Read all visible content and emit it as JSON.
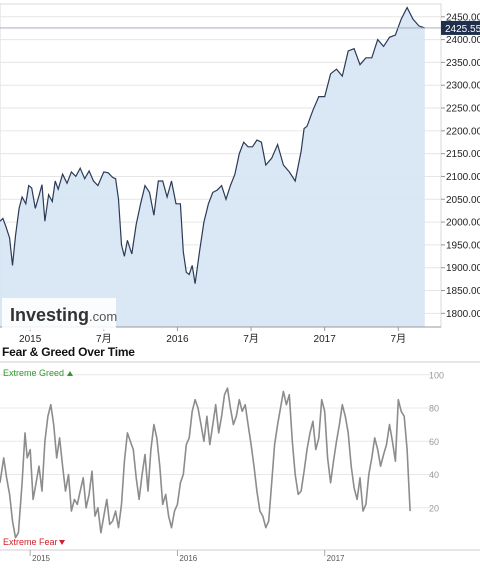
{
  "chart_data": [
    {
      "type": "area",
      "title": "",
      "logo": {
        "brand": "Investing",
        "suffix": ".com"
      },
      "x_ticks": [
        {
          "t": 2015.0,
          "label": "2015"
        },
        {
          "t": 2015.5,
          "label": "7月"
        },
        {
          "t": 2016.0,
          "label": "2016"
        },
        {
          "t": 2016.5,
          "label": "7月"
        },
        {
          "t": 2017.0,
          "label": "2017"
        },
        {
          "t": 2017.5,
          "label": "7月"
        }
      ],
      "y_ticks": [
        "1800.00",
        "1850.00",
        "1900.00",
        "1950.00",
        "2000.00",
        "2050.00",
        "2100.00",
        "2150.00",
        "2200.00",
        "2250.00",
        "2300.00",
        "2350.00",
        "2400.00",
        "2450.00"
      ],
      "ylim": [
        1770,
        2478
      ],
      "xlim": [
        2014.795,
        2017.79
      ],
      "current_value": "2425.55",
      "current_value_raw": 2425.55,
      "colors": {
        "line": "#2b3a55",
        "fill": "#d6e6f5",
        "badge": "#1f2f4d",
        "grid": "#e6e6e6"
      },
      "series": [
        {
          "x": [
            2014.795,
            2014.815,
            2014.835,
            2014.86,
            2014.88,
            2014.9,
            2014.925,
            2014.945,
            2014.97,
            2014.99,
            2015.01,
            2015.035,
            2015.06,
            2015.08,
            2015.1,
            2015.125,
            2015.15,
            2015.17,
            2015.19,
            2015.22,
            2015.25,
            2015.28,
            2015.31,
            2015.34,
            2015.37,
            2015.4,
            2015.43,
            2015.46,
            2015.5,
            2015.53,
            2015.56,
            2015.58,
            2015.6,
            2015.62,
            2015.64,
            2015.66,
            2015.69,
            2015.72,
            2015.75,
            2015.78,
            2015.81,
            2015.84,
            2015.87,
            2015.9,
            2015.93,
            2015.96,
            2015.99,
            2016.02,
            2016.04,
            2016.06,
            2016.08,
            2016.1,
            2016.12,
            2016.15,
            2016.18,
            2016.21,
            2016.24,
            2016.27,
            2016.3,
            2016.33,
            2016.36,
            2016.39,
            2016.42,
            2016.45,
            2016.48,
            2016.51,
            2016.54,
            2016.57,
            2016.6,
            2016.64,
            2016.68,
            2016.72,
            2016.76,
            2016.8,
            2016.84,
            2016.86,
            2016.88,
            2016.92,
            2016.96,
            2017.0,
            2017.04,
            2017.08,
            2017.12,
            2017.16,
            2017.2,
            2017.24,
            2017.28,
            2017.32,
            2017.36,
            2017.4,
            2017.44,
            2017.48,
            2017.52,
            2017.56,
            2017.6,
            2017.64,
            2017.68
          ],
          "y": [
            2002,
            2008,
            1990,
            1965,
            1905,
            1970,
            2030,
            2055,
            2040,
            2080,
            2075,
            2030,
            2058,
            2082,
            2002,
            2060,
            2045,
            2090,
            2072,
            2105,
            2085,
            2110,
            2100,
            2118,
            2095,
            2112,
            2090,
            2080,
            2110,
            2108,
            2098,
            2095,
            2050,
            1950,
            1925,
            1960,
            1930,
            1995,
            2040,
            2080,
            2065,
            2015,
            2090,
            2090,
            2055,
            2090,
            2040,
            2040,
            1935,
            1890,
            1885,
            1905,
            1865,
            1935,
            2000,
            2040,
            2065,
            2070,
            2080,
            2050,
            2080,
            2105,
            2150,
            2175,
            2165,
            2165,
            2180,
            2175,
            2125,
            2140,
            2170,
            2125,
            2110,
            2090,
            2155,
            2205,
            2210,
            2245,
            2275,
            2275,
            2325,
            2335,
            2320,
            2375,
            2380,
            2345,
            2360,
            2360,
            2400,
            2385,
            2405,
            2410,
            2445,
            2470,
            2445,
            2430,
            2425.55
          ]
        }
      ]
    },
    {
      "type": "line",
      "title": "Fear & Greed Over Time",
      "ylim": [
        0,
        100
      ],
      "y_ticks": [
        "20",
        "40",
        "60",
        "80",
        "100"
      ],
      "xlim": [
        2014.795,
        2017.79
      ],
      "x_ticks": [
        {
          "t": 2015.0,
          "label": "2015"
        },
        {
          "t": 2016.0,
          "label": "2016"
        },
        {
          "t": 2017.0,
          "label": "2017"
        }
      ],
      "upper_label": "Extreme Greed",
      "lower_label": "Extreme Fear",
      "colors": {
        "line": "#8c8c8c",
        "greed": "#2e9a2e",
        "fear": "#d0202a",
        "grid": "#e8e8e8"
      },
      "series": [
        {
          "x": [
            2014.795,
            2014.82,
            2014.84,
            2014.86,
            2014.88,
            2014.9,
            2014.92,
            2014.945,
            2014.965,
            2014.98,
            2015.0,
            2015.02,
            2015.04,
            2015.06,
            2015.08,
            2015.1,
            2015.12,
            2015.14,
            2015.16,
            2015.18,
            2015.2,
            2015.22,
            2015.24,
            2015.26,
            2015.28,
            2015.3,
            2015.32,
            2015.34,
            2015.36,
            2015.38,
            2015.4,
            2015.42,
            2015.44,
            2015.46,
            2015.48,
            2015.5,
            2015.52,
            2015.54,
            2015.56,
            2015.58,
            2015.6,
            2015.62,
            2015.64,
            2015.66,
            2015.68,
            2015.7,
            2015.72,
            2015.74,
            2015.76,
            2015.78,
            2015.8,
            2015.82,
            2015.84,
            2015.86,
            2015.88,
            2015.9,
            2015.92,
            2015.94,
            2015.96,
            2015.98,
            2016.0,
            2016.02,
            2016.04,
            2016.06,
            2016.08,
            2016.1,
            2016.12,
            2016.14,
            2016.16,
            2016.18,
            2016.2,
            2016.22,
            2016.24,
            2016.26,
            2016.28,
            2016.3,
            2016.32,
            2016.34,
            2016.36,
            2016.38,
            2016.4,
            2016.42,
            2016.44,
            2016.46,
            2016.48,
            2016.5,
            2016.52,
            2016.54,
            2016.56,
            2016.58,
            2016.6,
            2016.62,
            2016.64,
            2016.66,
            2016.68,
            2016.7,
            2016.72,
            2016.74,
            2016.76,
            2016.78,
            2016.8,
            2016.82,
            2016.84,
            2016.86,
            2016.88,
            2016.9,
            2016.92,
            2016.94,
            2016.96,
            2016.98,
            2017.0,
            2017.02,
            2017.04,
            2017.06,
            2017.08,
            2017.1,
            2017.12,
            2017.14,
            2017.16,
            2017.18,
            2017.2,
            2017.22,
            2017.24,
            2017.26,
            2017.28,
            2017.3,
            2017.32,
            2017.34,
            2017.36,
            2017.38,
            2017.4,
            2017.42,
            2017.44,
            2017.46,
            2017.48,
            2017.5,
            2017.52,
            2017.54,
            2017.56,
            2017.58
          ],
          "y": [
            35,
            50,
            38,
            28,
            12,
            2,
            5,
            35,
            65,
            50,
            55,
            25,
            35,
            45,
            30,
            60,
            75,
            82,
            70,
            50,
            62,
            45,
            30,
            40,
            18,
            25,
            22,
            30,
            38,
            20,
            28,
            42,
            15,
            20,
            5,
            15,
            25,
            10,
            12,
            18,
            8,
            22,
            48,
            65,
            60,
            55,
            38,
            25,
            40,
            52,
            30,
            55,
            70,
            62,
            45,
            22,
            28,
            15,
            8,
            18,
            22,
            35,
            40,
            58,
            62,
            78,
            85,
            80,
            70,
            60,
            75,
            58,
            70,
            82,
            65,
            75,
            88,
            92,
            80,
            70,
            75,
            85,
            78,
            82,
            70,
            58,
            45,
            30,
            18,
            15,
            8,
            12,
            35,
            58,
            70,
            80,
            90,
            82,
            88,
            60,
            40,
            28,
            30,
            42,
            55,
            65,
            72,
            55,
            62,
            85,
            78,
            50,
            35,
            48,
            60,
            70,
            82,
            75,
            65,
            45,
            32,
            25,
            38,
            18,
            22,
            40,
            50,
            62,
            55,
            45,
            52,
            58,
            70,
            60,
            48,
            85,
            78,
            75,
            55,
            18
          ]
        }
      ]
    }
  ]
}
